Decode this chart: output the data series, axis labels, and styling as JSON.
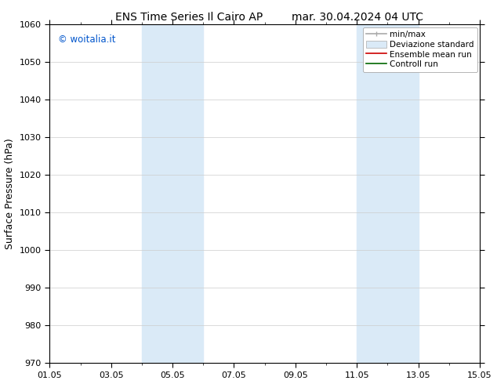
{
  "title_left": "ENS Time Series Il Cairo AP",
  "title_right": "mar. 30.04.2024 04 UTC",
  "ylabel": "Surface Pressure (hPa)",
  "ylim": [
    970,
    1060
  ],
  "yticks": [
    970,
    980,
    990,
    1000,
    1010,
    1020,
    1030,
    1040,
    1050,
    1060
  ],
  "xtick_labels": [
    "01.05",
    "03.05",
    "05.05",
    "07.05",
    "09.05",
    "11.05",
    "13.05",
    "15.05"
  ],
  "xtick_major_positions": [
    0,
    2,
    4,
    6,
    8,
    10,
    12,
    14
  ],
  "shaded_bands": [
    {
      "x_start": 3.0,
      "x_end": 5.0
    },
    {
      "x_start": 10.0,
      "x_end": 12.0
    }
  ],
  "shaded_color": "#daeaf7",
  "legend_labels": [
    "min/max",
    "Deviazione standard",
    "Ensemble mean run",
    "Controll run"
  ],
  "watermark_text": "© woitalia.it",
  "watermark_color": "#0055cc",
  "bg_color": "#ffffff",
  "grid_color": "#cccccc",
  "title_fontsize": 10,
  "tick_fontsize": 8,
  "ylabel_fontsize": 9
}
